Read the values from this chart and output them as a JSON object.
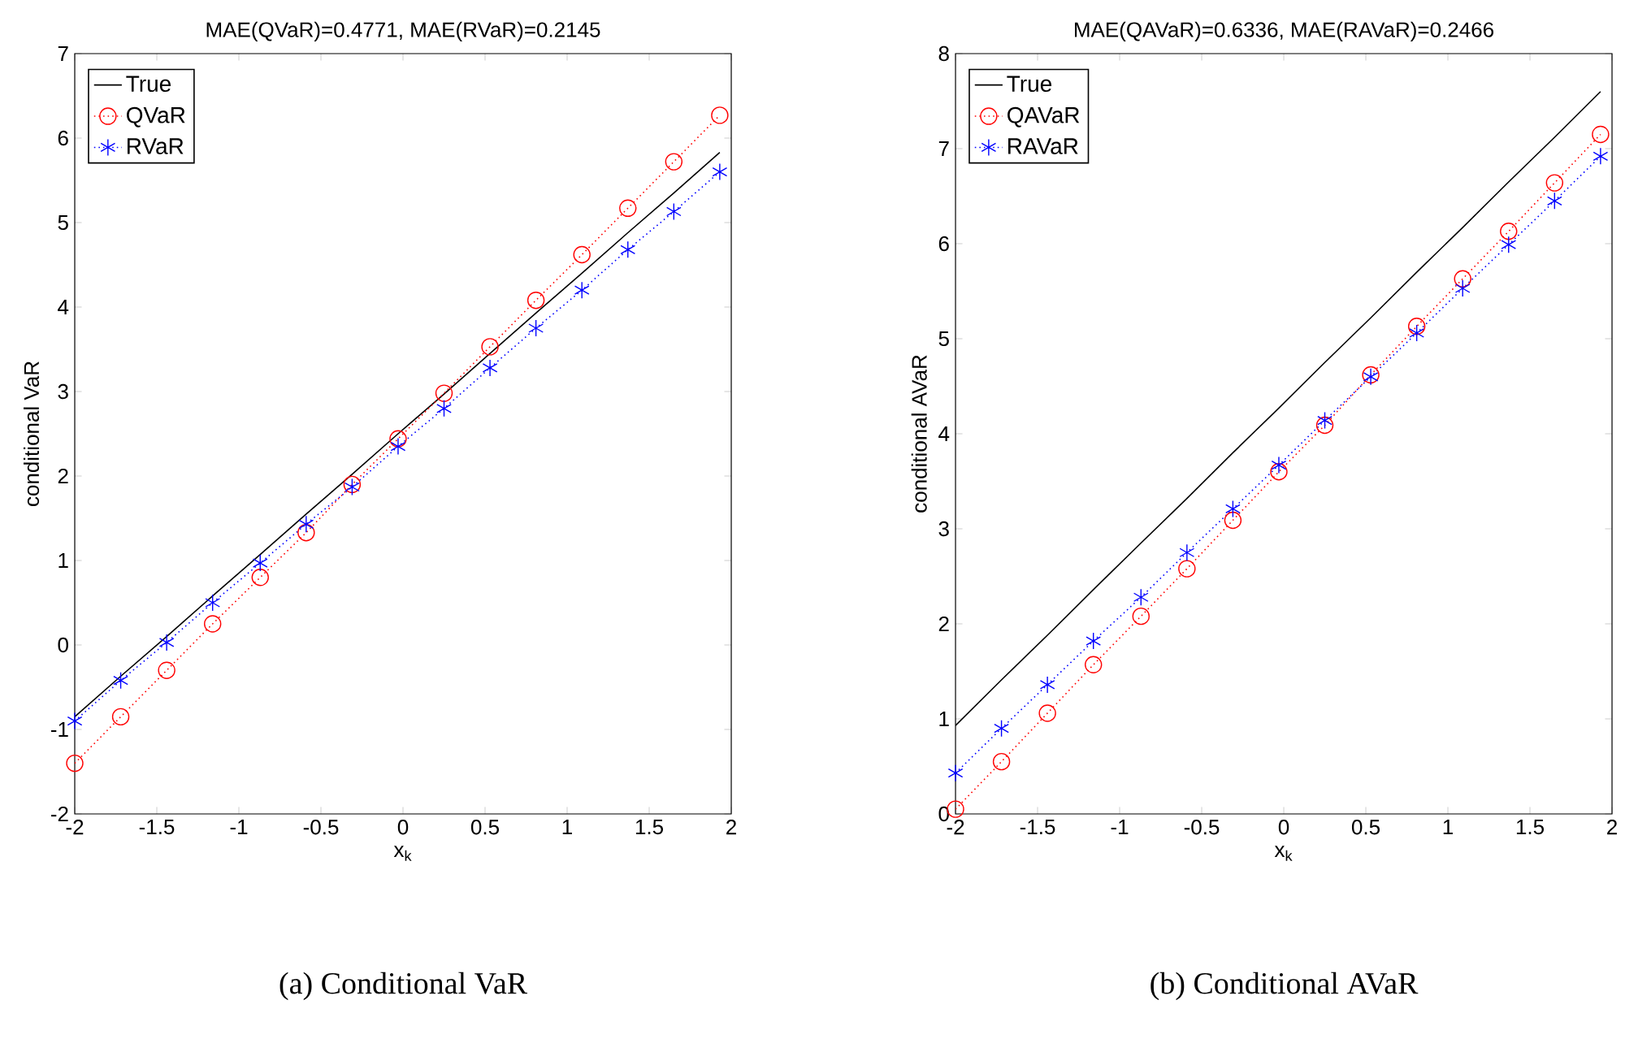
{
  "chart_data": [
    {
      "type": "line",
      "title": "MAE(QVaR)=0.4771, MAE(RVaR)=0.2145",
      "xlabel": "x$_{k}$",
      "ylabel": "conditional VaR",
      "annotations": [
        "(a) Conditional VaR"
      ],
      "x": [
        -2,
        -1.72,
        -1.44,
        -1.16,
        -0.87,
        -0.59,
        -0.31,
        -0.03,
        0.25,
        0.53,
        0.81,
        1.09,
        1.37,
        1.65,
        1.93
      ],
      "series": [
        {
          "name": "True",
          "color": "#000000",
          "values": [
            -0.85,
            -0.37,
            0.1,
            0.58,
            1.07,
            1.55,
            2.02,
            2.5,
            2.97,
            3.45,
            3.93,
            4.4,
            4.88,
            5.35,
            5.83
          ],
          "marker": "none",
          "line_style": "solid"
        },
        {
          "name": "QVaR",
          "color": "#ff0000",
          "values": [
            -1.4,
            -0.85,
            -0.3,
            0.25,
            0.8,
            1.33,
            1.9,
            2.44,
            2.98,
            3.53,
            4.08,
            4.62,
            5.17,
            5.72,
            6.27
          ],
          "marker": "circle",
          "line_style": "dotted"
        },
        {
          "name": "RVaR",
          "color": "#0000ff",
          "values": [
            -0.9,
            -0.42,
            0.03,
            0.5,
            0.97,
            1.43,
            1.87,
            2.35,
            2.8,
            3.28,
            3.75,
            4.2,
            4.68,
            5.13,
            5.6
          ],
          "marker": "cross",
          "line_style": "dotted"
        }
      ],
      "xlim": [
        -2,
        2
      ],
      "xticks": [
        -2,
        -1.5,
        -1,
        -0.5,
        0,
        0.5,
        1,
        1.5,
        2
      ],
      "ylim": [
        -2,
        7
      ],
      "yticks": [
        -2,
        -1,
        0,
        1,
        2,
        3,
        4,
        5,
        6,
        7
      ],
      "grid": false,
      "legend": "top left"
    },
    {
      "type": "line",
      "title": "MAE(QAVaR)=0.6336, MAE(RAVaR)=0.2466",
      "xlabel": "x$_{k}$",
      "ylabel": "conditional AVaR",
      "annotations": [
        "(b) Conditional AVaR"
      ],
      "x": [
        -2,
        -1.72,
        -1.44,
        -1.16,
        -0.87,
        -0.59,
        -0.31,
        -0.03,
        0.25,
        0.53,
        0.81,
        1.09,
        1.37,
        1.65,
        1.93
      ],
      "series": [
        {
          "name": "True",
          "color": "#000000",
          "values": [
            0.93,
            1.41,
            1.88,
            2.36,
            2.85,
            3.32,
            3.8,
            4.27,
            4.75,
            5.22,
            5.7,
            6.17,
            6.65,
            7.12,
            7.6
          ],
          "marker": "none",
          "line_style": "solid"
        },
        {
          "name": "QAVaR",
          "color": "#ff0000",
          "values": [
            0.05,
            0.55,
            1.06,
            1.57,
            2.08,
            2.58,
            3.09,
            3.6,
            4.09,
            4.62,
            5.13,
            5.63,
            6.13,
            6.64,
            7.15
          ],
          "marker": "circle",
          "line_style": "dotted"
        },
        {
          "name": "RAVaR",
          "color": "#0000ff",
          "values": [
            0.43,
            0.9,
            1.36,
            1.82,
            2.28,
            2.75,
            3.21,
            3.67,
            4.14,
            4.6,
            5.06,
            5.53,
            5.99,
            6.45,
            6.92
          ],
          "marker": "cross",
          "line_style": "dotted"
        }
      ],
      "xlim": [
        -2,
        2
      ],
      "xticks": [
        -2,
        -1.5,
        -1,
        -0.5,
        0,
        0.5,
        1,
        1.5,
        2
      ],
      "ylim": [
        0,
        8
      ],
      "yticks": [
        0,
        1,
        2,
        3,
        4,
        5,
        6,
        7,
        8
      ],
      "grid": false,
      "legend": "top left"
    }
  ]
}
